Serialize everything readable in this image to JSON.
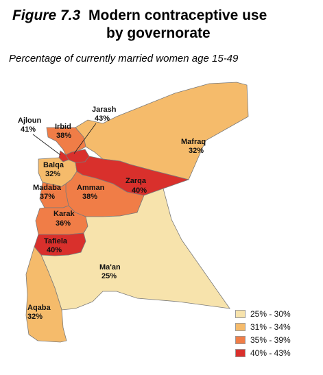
{
  "figure": {
    "number": "Figure 7.3",
    "title_line1": "Modern contraceptive use",
    "title_line2": "by governorate",
    "subtitle": "Percentage of currently married women age 15-49"
  },
  "colors": {
    "c25_30": "#f7e3ac",
    "c31_34": "#f5bb6b",
    "c35_39": "#f07d47",
    "c40_43": "#d9302c"
  },
  "legend": [
    {
      "label": "25% - 30%",
      "color": "#f7e3ac"
    },
    {
      "label": "31% - 34%",
      "color": "#f5bb6b"
    },
    {
      "label": "35% - 39%",
      "color": "#f07d47"
    },
    {
      "label": "40% - 43%",
      "color": "#d9302c"
    }
  ],
  "regions": {
    "ajloun": {
      "name": "Ajloun",
      "value": "41%",
      "pct": 41
    },
    "irbid": {
      "name": "Irbid",
      "value": "38%",
      "pct": 38
    },
    "jarash": {
      "name": "Jarash",
      "value": "43%",
      "pct": 43
    },
    "mafraq": {
      "name": "Mafraq",
      "value": "32%",
      "pct": 32
    },
    "balqa": {
      "name": "Balqa",
      "value": "32%",
      "pct": 32
    },
    "zarqa": {
      "name": "Zarqa",
      "value": "40%",
      "pct": 40
    },
    "madaba": {
      "name": "Madaba",
      "value": "37%",
      "pct": 37
    },
    "amman": {
      "name": "Amman",
      "value": "38%",
      "pct": 38
    },
    "karak": {
      "name": "Karak",
      "value": "36%",
      "pct": 36
    },
    "tafiela": {
      "name": "Tafiela",
      "value": "40%",
      "pct": 40
    },
    "maan": {
      "name": "Ma'an",
      "value": "25%",
      "pct": 25
    },
    "aqaba": {
      "name": "Aqaba",
      "value": "32%",
      "pct": 32
    }
  }
}
